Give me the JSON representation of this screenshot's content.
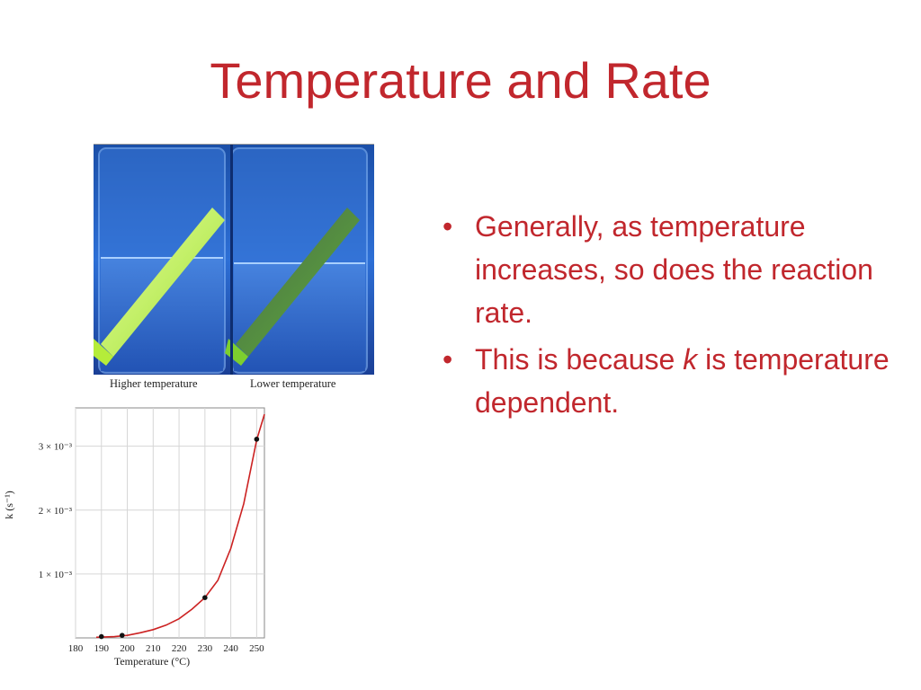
{
  "slide": {
    "title": "Temperature and Rate",
    "bullets": [
      {
        "text": "Generally, as temperature increases, so does the reaction rate."
      },
      {
        "before": "This is because ",
        "italic": "k",
        "after": " is temperature dependent."
      }
    ],
    "colors": {
      "title": "#c1272d",
      "bullet_text": "#c1272d"
    }
  },
  "photo": {
    "caption_left": "Higher temperature",
    "caption_right": "Lower temperature",
    "description_colors": {
      "water": "#2a62c8",
      "glowstick_bright": "#c8f54a",
      "glowstick_dim": "#6aa83a"
    }
  },
  "chart_data": {
    "type": "line",
    "xlabel": "Temperature (°C)",
    "ylabel": "k (s⁻¹)",
    "x_ticks": [
      180,
      190,
      200,
      210,
      220,
      230,
      240,
      250
    ],
    "y_ticks": [
      {
        "value": 0.001,
        "label": "1 × 10⁻³"
      },
      {
        "value": 0.002,
        "label": "2 × 10⁻³"
      },
      {
        "value": 0.003,
        "label": "3 × 10⁻³"
      }
    ],
    "xlim": [
      180,
      253
    ],
    "ylim": [
      0,
      0.0036
    ],
    "grid": true,
    "points": [
      {
        "x": 190,
        "y": 2e-05
      },
      {
        "x": 198,
        "y": 4e-05
      },
      {
        "x": 230,
        "y": 0.00063
      },
      {
        "x": 250,
        "y": 0.00311
      }
    ],
    "curve": {
      "x": [
        188,
        195,
        200,
        205,
        210,
        215,
        220,
        225,
        230,
        235,
        240,
        245,
        250,
        253
      ],
      "y": [
        1e-05,
        2e-05,
        4e-05,
        8e-05,
        0.00013,
        0.0002,
        0.0003,
        0.00045,
        0.00063,
        0.0009,
        0.0014,
        0.0021,
        0.0031,
        0.0035
      ]
    },
    "line_color": "#cc2222",
    "point_color": "#111111"
  }
}
